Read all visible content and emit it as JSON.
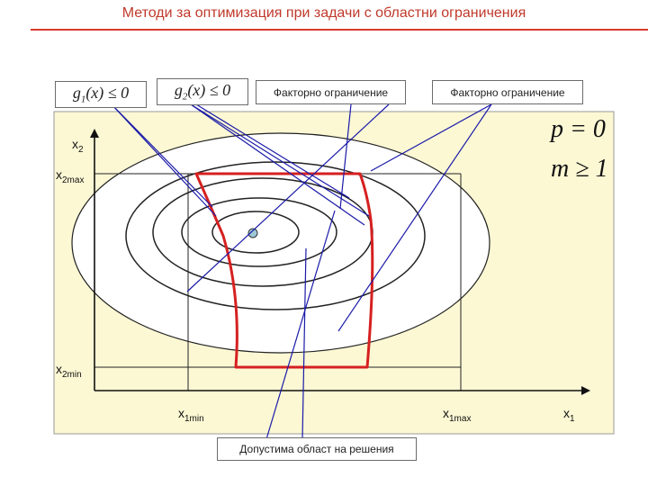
{
  "title": "Методи за оптимизация при задачи с областни ограничения",
  "constraints": {
    "g1_fn": "g",
    "g1_sub": "1",
    "g1_rest": "(x) ≤ 0",
    "g2_fn": "g",
    "g2_sub": "2",
    "g2_rest": "(x) ≤ 0",
    "factor_1": "Факторно ограничение",
    "factor_2": "Факторно ограничение"
  },
  "conditions": {
    "p": "p = 0",
    "m": "m ≥ 1"
  },
  "axes": {
    "x2": "x",
    "x2_sub": "2",
    "x2max": "x",
    "x2max_sub": "2max",
    "x2min": "x",
    "x2min_sub": "2min",
    "x1min": "x",
    "x1min_sub": "1min",
    "x1max": "x",
    "x1max_sub": "1max",
    "x1": "x",
    "x1_sub": "1"
  },
  "feasible_region_label": "Допустима област на решения",
  "colors": {
    "title": "#c0392b",
    "rule": "#d93a2b",
    "panel": "#fcf8d4",
    "feasible_boundary": "#d62020",
    "pointer": "#1a1aa8",
    "optimum": "#9ec7d6"
  }
}
